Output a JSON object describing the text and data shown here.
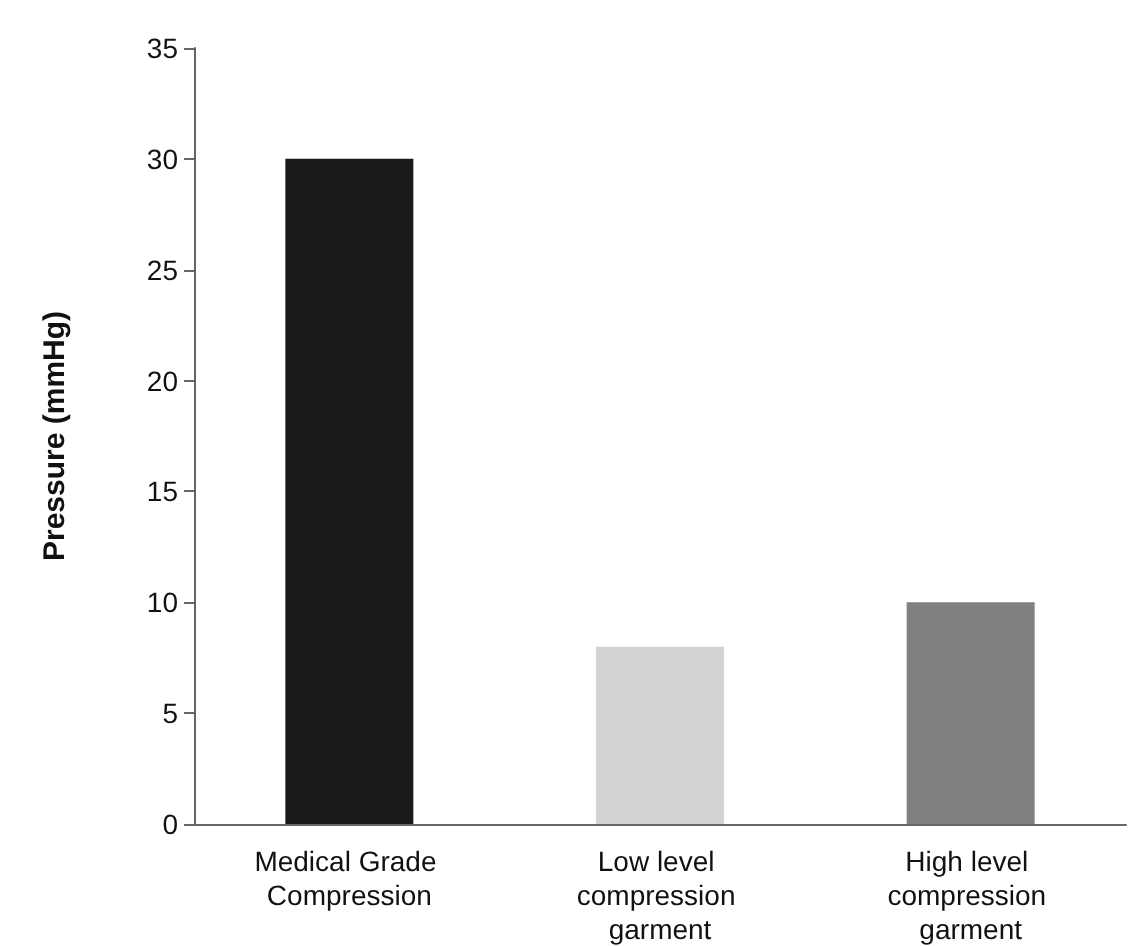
{
  "chart_data": {
    "type": "bar",
    "ylabel": "Pressure (mmHg)",
    "categories": [
      "Medical Grade Compression",
      "Low level compression garment",
      "High level compression garment"
    ],
    "values": [
      30,
      8,
      10
    ],
    "colors": [
      "#1a1a1a",
      "#d3d3d3",
      "#808080"
    ],
    "ylim": [
      0,
      35
    ],
    "yticks": [
      0,
      5,
      10,
      15,
      20,
      25,
      30,
      35
    ],
    "grid": false
  }
}
